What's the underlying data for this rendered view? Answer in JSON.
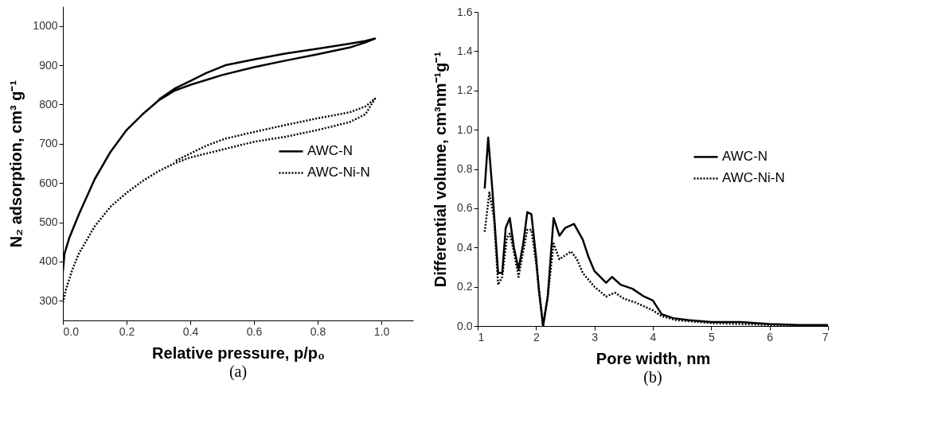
{
  "chart_data": [
    {
      "type": "line",
      "title": "(a)",
      "xlabel": "Relative pressure, p/p₀",
      "ylabel": "N₂ adsorption, cm³ g⁻¹",
      "xlim": [
        0,
        1.1
      ],
      "ylim": [
        250,
        1050
      ],
      "xticks": [
        {
          "value": 0,
          "label": "0.0"
        },
        0.2,
        0.4,
        0.6,
        0.8,
        {
          "value": 1,
          "label": "1.0"
        }
      ],
      "yticks": [
        300,
        400,
        500,
        600,
        700,
        800,
        900,
        1000
      ],
      "grid": false,
      "legend": "right",
      "marker": "none",
      "series": [
        {
          "name": "AWC-N",
          "color": "#000000",
          "line_style": "solid",
          "x": [
            0,
            0.005,
            0.02,
            0.05,
            0.1,
            0.15,
            0.2,
            0.25,
            0.3,
            0.35,
            0.4,
            0.5,
            0.6,
            0.7,
            0.8,
            0.9,
            0.95,
            0.98,
            0.95,
            0.9,
            0.8,
            0.7,
            0.6,
            0.51,
            0.45,
            0.4,
            0.35,
            0.3
          ],
          "values": [
            375,
            420,
            460,
            520,
            610,
            680,
            735,
            775,
            810,
            835,
            850,
            875,
            895,
            912,
            928,
            945,
            958,
            968,
            962,
            955,
            942,
            930,
            915,
            900,
            880,
            860,
            840,
            812
          ]
        },
        {
          "name": "AWC-Ni-N",
          "color": "#000000",
          "line_style": "dotted",
          "x": [
            0,
            0.01,
            0.03,
            0.05,
            0.1,
            0.15,
            0.2,
            0.25,
            0.3,
            0.35,
            0.4,
            0.5,
            0.6,
            0.7,
            0.8,
            0.9,
            0.95,
            0.98,
            0.95,
            0.9,
            0.8,
            0.7,
            0.6,
            0.51,
            0.45,
            0.4,
            0.35
          ],
          "values": [
            295,
            330,
            380,
            420,
            490,
            540,
            575,
            605,
            630,
            650,
            665,
            685,
            705,
            718,
            735,
            755,
            775,
            815,
            795,
            780,
            765,
            748,
            730,
            713,
            695,
            675,
            655
          ]
        }
      ]
    },
    {
      "type": "line",
      "title": "(b)",
      "xlabel": "Pore width, nm",
      "ylabel": "Differential volume, cm³nm⁻¹g⁻¹",
      "xlim": [
        1,
        7
      ],
      "ylim": [
        0,
        1.6
      ],
      "xticks": [
        1,
        2,
        3,
        4,
        5,
        6,
        7
      ],
      "yticks": [
        {
          "value": 0,
          "label": "0.0"
        },
        0.2,
        0.4,
        0.6,
        0.8,
        {
          "value": 1,
          "label": "1.0"
        },
        1.2,
        1.4,
        1.6
      ],
      "grid": false,
      "legend": "right",
      "marker": "none",
      "series": [
        {
          "name": "AWC-N",
          "color": "#000000",
          "line_style": "solid",
          "x": [
            1.12,
            1.18,
            1.25,
            1.35,
            1.42,
            1.48,
            1.55,
            1.62,
            1.7,
            1.78,
            1.85,
            1.92,
            2.0,
            2.05,
            2.12,
            2.2,
            2.3,
            2.4,
            2.5,
            2.65,
            2.8,
            2.9,
            3.0,
            3.2,
            3.3,
            3.45,
            3.65,
            3.85,
            4.0,
            4.15,
            4.35,
            4.6,
            5.0,
            5.5,
            6.0,
            6.5,
            7.0
          ],
          "values": [
            0.7,
            0.96,
            0.7,
            0.27,
            0.27,
            0.5,
            0.55,
            0.4,
            0.29,
            0.42,
            0.58,
            0.57,
            0.35,
            0.18,
            0.0,
            0.15,
            0.55,
            0.46,
            0.5,
            0.52,
            0.44,
            0.35,
            0.28,
            0.22,
            0.25,
            0.21,
            0.19,
            0.15,
            0.13,
            0.06,
            0.04,
            0.03,
            0.02,
            0.02,
            0.01,
            0.005,
            0.005
          ]
        },
        {
          "name": "AWC-Ni-N",
          "color": "#000000",
          "line_style": "dotted",
          "x": [
            1.12,
            1.2,
            1.28,
            1.35,
            1.42,
            1.5,
            1.55,
            1.62,
            1.7,
            1.78,
            1.85,
            1.92,
            2.0,
            2.12,
            2.2,
            2.3,
            2.4,
            2.5,
            2.6,
            2.7,
            2.8,
            3.0,
            3.2,
            3.35,
            3.5,
            3.7,
            4.0,
            4.15,
            4.4,
            5.0,
            6.0,
            7.0
          ],
          "values": [
            0.48,
            0.68,
            0.55,
            0.21,
            0.25,
            0.45,
            0.47,
            0.38,
            0.25,
            0.38,
            0.49,
            0.49,
            0.32,
            0.0,
            0.15,
            0.42,
            0.34,
            0.36,
            0.38,
            0.34,
            0.27,
            0.2,
            0.15,
            0.17,
            0.14,
            0.12,
            0.08,
            0.05,
            0.03,
            0.015,
            0.005,
            0.0
          ]
        }
      ]
    }
  ]
}
